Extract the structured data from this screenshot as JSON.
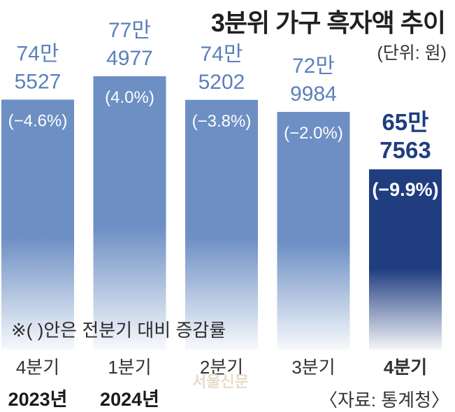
{
  "title": "3분위 가구 흑자액 추이",
  "unit": "(단위: 원)",
  "footnote": "※( )안은 전분기 대비 증감률",
  "source": "〈자료: 통계청〉",
  "watermark": "서울신문",
  "colors": {
    "bar": "#6d8fc4",
    "bar_highlight": "#1f3d7f",
    "label": "#5b80bb",
    "label_highlight": "#1f3d7f",
    "pct_text": "#ffffff",
    "axis_text": "#333333"
  },
  "chart_data": {
    "type": "bar",
    "categories": [
      "4분기 2023년",
      "1분기 2024년",
      "2분기",
      "3분기",
      "4분기"
    ],
    "quarter_labels": [
      "4분기",
      "1분기",
      "2분기",
      "3분기",
      "4분기"
    ],
    "year_labels": [
      "2023년",
      "2024년",
      "",
      "",
      ""
    ],
    "values": [
      745527,
      774977,
      745202,
      729984,
      657563
    ],
    "value_labels_top": [
      "74만",
      "77만",
      "74만",
      "72만",
      "65만"
    ],
    "value_labels_bottom": [
      "5527",
      "4977",
      "5202",
      "9984",
      "7563"
    ],
    "change_pct_labels": [
      "(−4.6%)",
      "(4.0%)",
      "(−3.8%)",
      "(−2.0%)",
      "(−9.9%)"
    ],
    "change_pct": [
      -4.6,
      4.0,
      -3.8,
      -2.0,
      -9.9
    ],
    "highlight_index": 4,
    "ylim": [
      430000,
      790000
    ]
  }
}
